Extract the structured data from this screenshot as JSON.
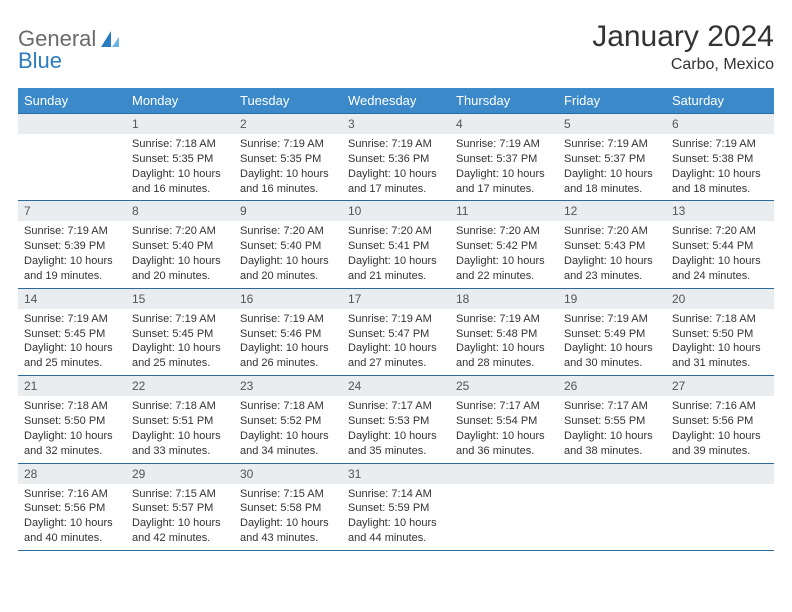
{
  "logo": {
    "general": "General",
    "blue": "Blue",
    "icon_color": "#2b7bbf"
  },
  "header": {
    "month_title": "January 2024",
    "location": "Carbo, Mexico"
  },
  "colors": {
    "header_bg": "#3b89c9",
    "header_text": "#ffffff",
    "row_border": "#2b6a9e",
    "daynum_bg": "#e9edef",
    "daynum_text": "#555555",
    "body_text": "#333333"
  },
  "weekdays": [
    "Sunday",
    "Monday",
    "Tuesday",
    "Wednesday",
    "Thursday",
    "Friday",
    "Saturday"
  ],
  "weeks": [
    [
      null,
      {
        "n": "1",
        "sr": "Sunrise: 7:18 AM",
        "ss": "Sunset: 5:35 PM",
        "d1": "Daylight: 10 hours",
        "d2": "and 16 minutes."
      },
      {
        "n": "2",
        "sr": "Sunrise: 7:19 AM",
        "ss": "Sunset: 5:35 PM",
        "d1": "Daylight: 10 hours",
        "d2": "and 16 minutes."
      },
      {
        "n": "3",
        "sr": "Sunrise: 7:19 AM",
        "ss": "Sunset: 5:36 PM",
        "d1": "Daylight: 10 hours",
        "d2": "and 17 minutes."
      },
      {
        "n": "4",
        "sr": "Sunrise: 7:19 AM",
        "ss": "Sunset: 5:37 PM",
        "d1": "Daylight: 10 hours",
        "d2": "and 17 minutes."
      },
      {
        "n": "5",
        "sr": "Sunrise: 7:19 AM",
        "ss": "Sunset: 5:37 PM",
        "d1": "Daylight: 10 hours",
        "d2": "and 18 minutes."
      },
      {
        "n": "6",
        "sr": "Sunrise: 7:19 AM",
        "ss": "Sunset: 5:38 PM",
        "d1": "Daylight: 10 hours",
        "d2": "and 18 minutes."
      }
    ],
    [
      {
        "n": "7",
        "sr": "Sunrise: 7:19 AM",
        "ss": "Sunset: 5:39 PM",
        "d1": "Daylight: 10 hours",
        "d2": "and 19 minutes."
      },
      {
        "n": "8",
        "sr": "Sunrise: 7:20 AM",
        "ss": "Sunset: 5:40 PM",
        "d1": "Daylight: 10 hours",
        "d2": "and 20 minutes."
      },
      {
        "n": "9",
        "sr": "Sunrise: 7:20 AM",
        "ss": "Sunset: 5:40 PM",
        "d1": "Daylight: 10 hours",
        "d2": "and 20 minutes."
      },
      {
        "n": "10",
        "sr": "Sunrise: 7:20 AM",
        "ss": "Sunset: 5:41 PM",
        "d1": "Daylight: 10 hours",
        "d2": "and 21 minutes."
      },
      {
        "n": "11",
        "sr": "Sunrise: 7:20 AM",
        "ss": "Sunset: 5:42 PM",
        "d1": "Daylight: 10 hours",
        "d2": "and 22 minutes."
      },
      {
        "n": "12",
        "sr": "Sunrise: 7:20 AM",
        "ss": "Sunset: 5:43 PM",
        "d1": "Daylight: 10 hours",
        "d2": "and 23 minutes."
      },
      {
        "n": "13",
        "sr": "Sunrise: 7:20 AM",
        "ss": "Sunset: 5:44 PM",
        "d1": "Daylight: 10 hours",
        "d2": "and 24 minutes."
      }
    ],
    [
      {
        "n": "14",
        "sr": "Sunrise: 7:19 AM",
        "ss": "Sunset: 5:45 PM",
        "d1": "Daylight: 10 hours",
        "d2": "and 25 minutes."
      },
      {
        "n": "15",
        "sr": "Sunrise: 7:19 AM",
        "ss": "Sunset: 5:45 PM",
        "d1": "Daylight: 10 hours",
        "d2": "and 25 minutes."
      },
      {
        "n": "16",
        "sr": "Sunrise: 7:19 AM",
        "ss": "Sunset: 5:46 PM",
        "d1": "Daylight: 10 hours",
        "d2": "and 26 minutes."
      },
      {
        "n": "17",
        "sr": "Sunrise: 7:19 AM",
        "ss": "Sunset: 5:47 PM",
        "d1": "Daylight: 10 hours",
        "d2": "and 27 minutes."
      },
      {
        "n": "18",
        "sr": "Sunrise: 7:19 AM",
        "ss": "Sunset: 5:48 PM",
        "d1": "Daylight: 10 hours",
        "d2": "and 28 minutes."
      },
      {
        "n": "19",
        "sr": "Sunrise: 7:19 AM",
        "ss": "Sunset: 5:49 PM",
        "d1": "Daylight: 10 hours",
        "d2": "and 30 minutes."
      },
      {
        "n": "20",
        "sr": "Sunrise: 7:18 AM",
        "ss": "Sunset: 5:50 PM",
        "d1": "Daylight: 10 hours",
        "d2": "and 31 minutes."
      }
    ],
    [
      {
        "n": "21",
        "sr": "Sunrise: 7:18 AM",
        "ss": "Sunset: 5:50 PM",
        "d1": "Daylight: 10 hours",
        "d2": "and 32 minutes."
      },
      {
        "n": "22",
        "sr": "Sunrise: 7:18 AM",
        "ss": "Sunset: 5:51 PM",
        "d1": "Daylight: 10 hours",
        "d2": "and 33 minutes."
      },
      {
        "n": "23",
        "sr": "Sunrise: 7:18 AM",
        "ss": "Sunset: 5:52 PM",
        "d1": "Daylight: 10 hours",
        "d2": "and 34 minutes."
      },
      {
        "n": "24",
        "sr": "Sunrise: 7:17 AM",
        "ss": "Sunset: 5:53 PM",
        "d1": "Daylight: 10 hours",
        "d2": "and 35 minutes."
      },
      {
        "n": "25",
        "sr": "Sunrise: 7:17 AM",
        "ss": "Sunset: 5:54 PM",
        "d1": "Daylight: 10 hours",
        "d2": "and 36 minutes."
      },
      {
        "n": "26",
        "sr": "Sunrise: 7:17 AM",
        "ss": "Sunset: 5:55 PM",
        "d1": "Daylight: 10 hours",
        "d2": "and 38 minutes."
      },
      {
        "n": "27",
        "sr": "Sunrise: 7:16 AM",
        "ss": "Sunset: 5:56 PM",
        "d1": "Daylight: 10 hours",
        "d2": "and 39 minutes."
      }
    ],
    [
      {
        "n": "28",
        "sr": "Sunrise: 7:16 AM",
        "ss": "Sunset: 5:56 PM",
        "d1": "Daylight: 10 hours",
        "d2": "and 40 minutes."
      },
      {
        "n": "29",
        "sr": "Sunrise: 7:15 AM",
        "ss": "Sunset: 5:57 PM",
        "d1": "Daylight: 10 hours",
        "d2": "and 42 minutes."
      },
      {
        "n": "30",
        "sr": "Sunrise: 7:15 AM",
        "ss": "Sunset: 5:58 PM",
        "d1": "Daylight: 10 hours",
        "d2": "and 43 minutes."
      },
      {
        "n": "31",
        "sr": "Sunrise: 7:14 AM",
        "ss": "Sunset: 5:59 PM",
        "d1": "Daylight: 10 hours",
        "d2": "and 44 minutes."
      },
      null,
      null,
      null
    ]
  ]
}
